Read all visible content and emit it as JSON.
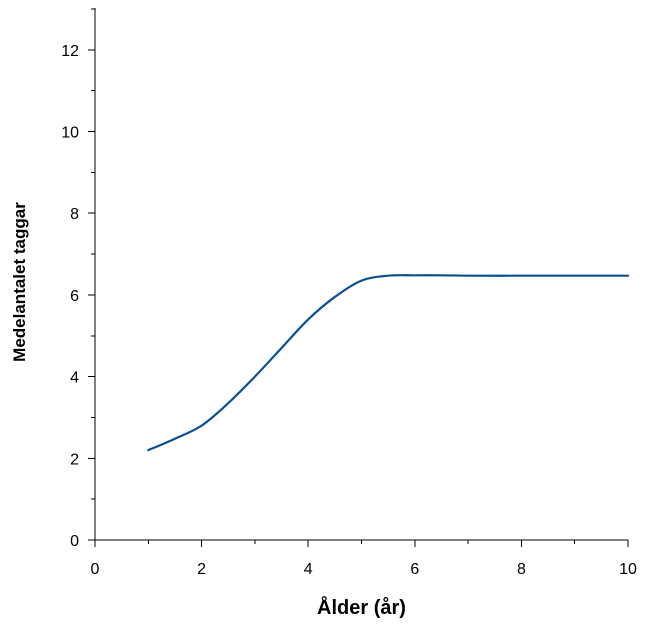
{
  "chart_data": {
    "type": "line",
    "title": "",
    "xlabel": "Ålder (år)",
    "ylabel": "Medelantalet taggar",
    "xlim": [
      0,
      10
    ],
    "ylim": [
      0,
      13
    ],
    "x_ticks": [
      0,
      2,
      4,
      6,
      8,
      10
    ],
    "x_minor_ticks": [
      1,
      3,
      5,
      7,
      9
    ],
    "y_ticks": [
      0,
      2,
      4,
      6,
      8,
      10,
      12
    ],
    "y_minor_ticks": [
      1,
      3,
      5,
      7,
      9,
      11,
      13
    ],
    "grid": false,
    "series": [
      {
        "color": "#0b4f8f",
        "x": [
          1,
          1.5,
          2,
          2.5,
          3,
          3.5,
          4,
          4.5,
          5,
          5.5,
          6,
          6.5,
          7,
          8,
          9,
          10
        ],
        "y": [
          2.2,
          2.48,
          2.8,
          3.35,
          4.0,
          4.7,
          5.4,
          5.95,
          6.35,
          6.47,
          6.48,
          6.48,
          6.47,
          6.47,
          6.47,
          6.47
        ]
      }
    ]
  }
}
